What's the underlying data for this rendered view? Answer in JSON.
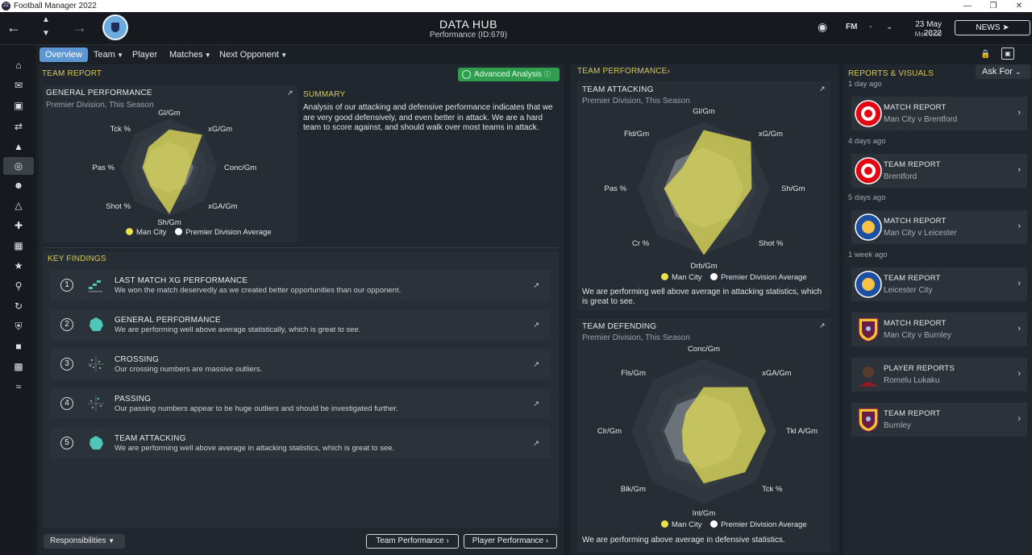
{
  "window": {
    "title": "Football Manager 2022",
    "app_badge": "22"
  },
  "header": {
    "title": "DATA HUB",
    "subtitle": "Performance (ID:679)",
    "fm_label": "FM",
    "dash": "-",
    "date": "23 May 2022",
    "time": "Mon 0:00",
    "news_label": "NEWS"
  },
  "tabs": [
    {
      "label": "Overview"
    },
    {
      "label": "Team"
    },
    {
      "label": "Player"
    },
    {
      "label": "Matches"
    },
    {
      "label": "Next Opponent"
    }
  ],
  "team_report": {
    "section_title": "TEAM REPORT",
    "advanced_label": "Advanced Analysis",
    "general": {
      "title": "GENERAL PERFORMANCE",
      "subtitle": "Premier Division, This Season",
      "labels": [
        "Gl/Gm",
        "xG/Gm",
        "Conc/Gm",
        "xGA/Gm",
        "Sh/Gm",
        "Shot %",
        "Pas %",
        "Tck %"
      ]
    },
    "summary": {
      "title": "SUMMARY",
      "text": "Analysis of our attacking and defensive performance indicates that we are very good defensively, and even better in attack. We are a hard team to score against, and should walk over most teams in attack."
    },
    "legend": {
      "team": "Man City",
      "average": "Premier Division Average"
    },
    "key_findings": {
      "title": "KEY FINDINGS",
      "items": [
        {
          "num": "1",
          "title": "LAST MATCH XG PERFORMANCE",
          "desc": "We won the match deservedly as we created better opportunities than our opponent."
        },
        {
          "num": "2",
          "title": "GENERAL PERFORMANCE",
          "desc": "We are performing well above average statistically, which is great to see."
        },
        {
          "num": "3",
          "title": "CROSSING",
          "desc": "Our crossing numbers are massive outliers."
        },
        {
          "num": "4",
          "title": "PASSING",
          "desc": "Our passing numbers appear to be huge outliers and should be investigated further."
        },
        {
          "num": "5",
          "title": "TEAM ATTACKING",
          "desc": "We are performing well above average in attacking statistics, which is great to see."
        }
      ]
    },
    "responsibilities_label": "Responsibilities",
    "team_performance_btn": "Team Performance",
    "player_performance_btn": "Player Performance"
  },
  "team_performance": {
    "section_title": "TEAM PERFORMANCE",
    "attacking": {
      "title": "TEAM ATTACKING",
      "subtitle": "Premier Division, This Season",
      "labels": [
        "Gl/Gm",
        "xG/Gm",
        "Sh/Gm",
        "Shot %",
        "Drb/Gm",
        "Cr %",
        "Pas %",
        "Fld/Gm"
      ],
      "caption": "We are performing well above average in attacking statistics, which is great to see."
    },
    "defending": {
      "title": "TEAM DEFENDING",
      "subtitle": "Premier Division, This Season",
      "labels": [
        "Conc/Gm",
        "xGA/Gm",
        "Tkl A/Gm",
        "Tck %",
        "Int/Gm",
        "Blk/Gm",
        "Clr/Gm",
        "Fls/Gm"
      ],
      "caption": "We are performing above average in defensive statistics."
    }
  },
  "reports": {
    "title": "REPORTS & VISUALS",
    "ask_for_label": "Ask For",
    "groups": [
      {
        "time": "1 day ago",
        "y": 0
      },
      {
        "time": "4 days ago",
        "y": 1
      },
      {
        "time": "5 days ago",
        "y": 2
      },
      {
        "time": "1 week ago",
        "y": 3
      }
    ],
    "items": [
      {
        "title": "MATCH REPORT",
        "sub": "Man City v Brentford"
      },
      {
        "title": "TEAM REPORT",
        "sub": "Brentford"
      },
      {
        "title": "MATCH REPORT",
        "sub": "Man City v Leicester"
      },
      {
        "title": "TEAM REPORT",
        "sub": "Leicester City"
      },
      {
        "title": "MATCH REPORT",
        "sub": "Man City v Burnley"
      },
      {
        "title": "PLAYER REPORTS",
        "sub": "Romelu Lukaku"
      },
      {
        "title": "TEAM REPORT",
        "sub": "Burnley"
      }
    ]
  },
  "colors": {
    "team": "#d9d65a",
    "average": "#ffffff",
    "accent_green": "#2f9e4f",
    "accent_blue": "#5d97d3",
    "section_yellow": "#d7c950"
  },
  "icons": [
    "back-arrow-icon",
    "forward-arrow-icon",
    "home-icon",
    "inbox-icon",
    "squad-icon",
    "transfers-icon",
    "data-hub-icon",
    "staff-icon",
    "training-icon",
    "medical-icon",
    "schedule-icon",
    "competitions-icon",
    "scouting-icon",
    "dynamics-icon",
    "club-info-icon",
    "finances-icon",
    "fm-icon",
    "lock-icon"
  ]
}
